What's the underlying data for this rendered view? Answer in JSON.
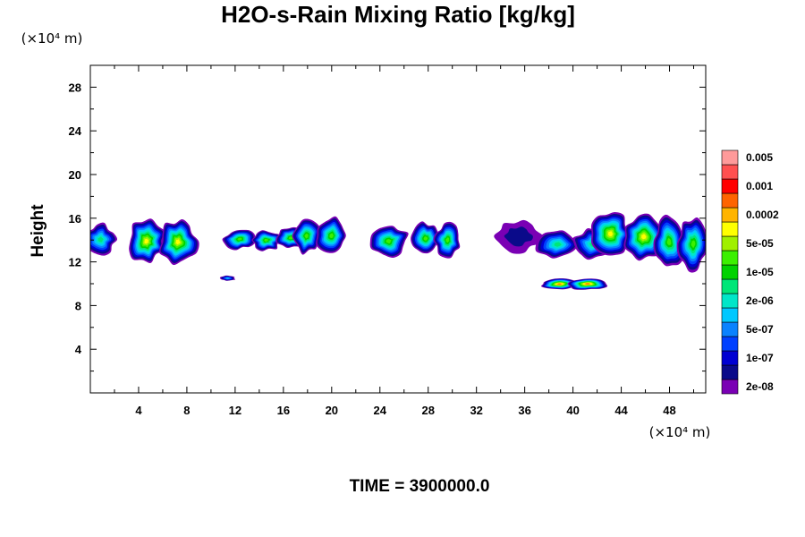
{
  "chart_data": {
    "type": "heatmap",
    "title": "H2O-s-Rain Mixing Ratio [kg/kg]",
    "ylabel": "Height",
    "xlabel": "",
    "y_unit": "(×10⁴ m)",
    "x_unit": "(×10⁴ m)",
    "x_ticks": [
      4,
      8,
      12,
      16,
      20,
      24,
      28,
      32,
      36,
      40,
      44,
      48
    ],
    "y_ticks": [
      4,
      8,
      12,
      16,
      20,
      24,
      28
    ],
    "xlim": [
      0,
      51
    ],
    "ylim": [
      0,
      30
    ],
    "grid": false,
    "legend_position": "right",
    "colorbar": {
      "colors": [
        "#7a00b4",
        "#0a0a8a",
        "#0000d2",
        "#0040ff",
        "#0a82ff",
        "#00c8ff",
        "#00e6c8",
        "#00e678",
        "#00d200",
        "#3cf000",
        "#a0f000",
        "#ffff00",
        "#ffb400",
        "#ff6400",
        "#ff0000",
        "#ff5050",
        "#ff9a9a"
      ],
      "labels": [
        "2e-08",
        "1e-07",
        "5e-07",
        "2e-06",
        "1e-05",
        "5e-05",
        "0.0002",
        "0.001",
        "0.005"
      ]
    },
    "features": [
      {
        "x_range": [
          0,
          2
        ],
        "y_range": [
          12.5,
          15.3
        ],
        "peak": "2e-06"
      },
      {
        "x_range": [
          3.5,
          8.5
        ],
        "y_range": [
          11.8,
          16.0
        ],
        "peak": "5e-05"
      },
      {
        "x_range": [
          11,
          12
        ],
        "y_range": [
          10.2,
          10.7
        ],
        "peak": "5e-07"
      },
      {
        "x_range": [
          11.5,
          17.5
        ],
        "y_range": [
          13.0,
          15.0
        ],
        "peak": "1e-05"
      },
      {
        "x_range": [
          17,
          21
        ],
        "y_range": [
          12.8,
          16.0
        ],
        "peak": "1e-05"
      },
      {
        "x_range": [
          23.5,
          26
        ],
        "y_range": [
          12.3,
          15.4
        ],
        "peak": "1e-05"
      },
      {
        "x_range": [
          27,
          30.5
        ],
        "y_range": [
          12.3,
          15.4
        ],
        "peak": "1e-05"
      },
      {
        "x_range": [
          34,
          37
        ],
        "y_range": [
          13.0,
          16.3
        ],
        "peak": "2e-08"
      },
      {
        "x_range": [
          37.5,
          42.5
        ],
        "y_range": [
          9.5,
          10.6
        ],
        "peak": "0.0002"
      },
      {
        "x_range": [
          37.5,
          43
        ],
        "y_range": [
          12.3,
          15.0
        ],
        "peak": "2e-06"
      },
      {
        "x_range": [
          42,
          47
        ],
        "y_range": [
          12.3,
          16.2
        ],
        "peak": "5e-05"
      },
      {
        "x_range": [
          47,
          51
        ],
        "y_range": [
          11.3,
          16.0
        ],
        "peak": "1e-05"
      }
    ]
  },
  "footer": {
    "time_label": "TIME = 3900000.0"
  }
}
